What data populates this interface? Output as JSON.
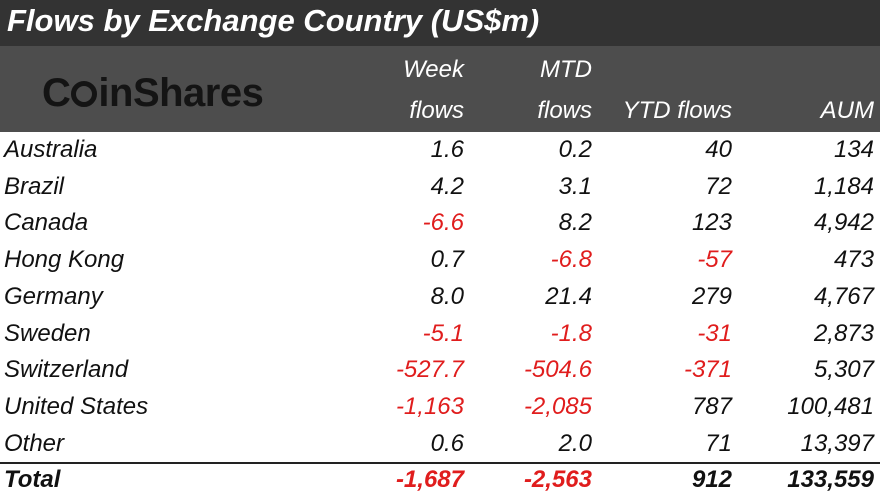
{
  "title": "Flows by Exchange Country (US$m)",
  "logo": "CoinShares",
  "colors": {
    "title_bg": "#333333",
    "header_bg": "#4d4d4d",
    "negative": "#e01d1d"
  },
  "chart_data": {
    "type": "table",
    "columns": [
      {
        "key": "week",
        "lines": [
          "Week",
          "flows"
        ]
      },
      {
        "key": "mtd",
        "lines": [
          "MTD",
          "flows"
        ]
      },
      {
        "key": "ytd",
        "lines": [
          "",
          "YTD flows"
        ]
      },
      {
        "key": "aum",
        "lines": [
          "",
          "AUM"
        ]
      }
    ],
    "rows": [
      {
        "country": "Australia",
        "week": "1.6",
        "mtd": "0.2",
        "ytd": "40",
        "aum": "134"
      },
      {
        "country": "Brazil",
        "week": "4.2",
        "mtd": "3.1",
        "ytd": "72",
        "aum": "1,184"
      },
      {
        "country": "Canada",
        "week": "-6.6",
        "mtd": "8.2",
        "ytd": "123",
        "aum": "4,942"
      },
      {
        "country": "Hong Kong",
        "week": "0.7",
        "mtd": "-6.8",
        "ytd": "-57",
        "aum": "473"
      },
      {
        "country": "Germany",
        "week": "8.0",
        "mtd": "21.4",
        "ytd": "279",
        "aum": "4,767"
      },
      {
        "country": "Sweden",
        "week": "-5.1",
        "mtd": "-1.8",
        "ytd": "-31",
        "aum": "2,873"
      },
      {
        "country": "Switzerland",
        "week": "-527.7",
        "mtd": "-504.6",
        "ytd": "-371",
        "aum": "5,307"
      },
      {
        "country": "United States",
        "week": "-1,163",
        "mtd": "-2,085",
        "ytd": "787",
        "aum": "100,481"
      },
      {
        "country": "Other",
        "week": "0.6",
        "mtd": "2.0",
        "ytd": "71",
        "aum": "13,397"
      }
    ],
    "total": {
      "country": "Total",
      "week": "-1,687",
      "mtd": "-2,563",
      "ytd": "912",
      "aum": "133,559"
    }
  }
}
